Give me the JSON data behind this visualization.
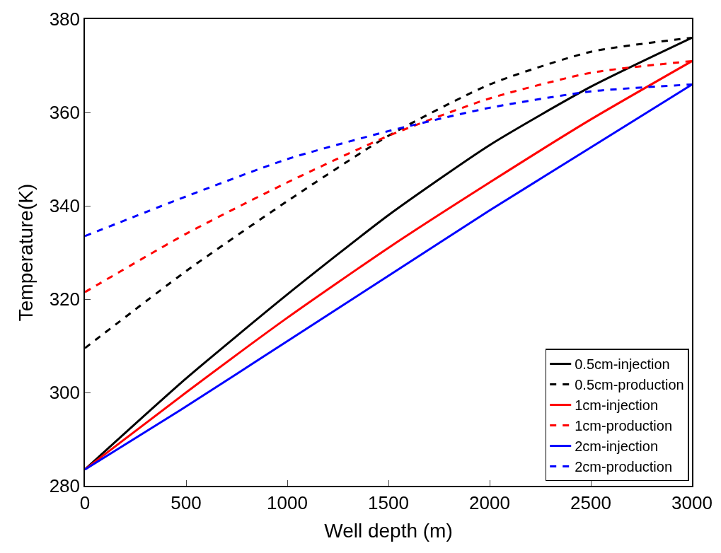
{
  "chart_data": {
    "type": "line",
    "xlabel": "Well depth (m)",
    "ylabel": "Temperature(K)",
    "x": [
      0,
      500,
      1000,
      1500,
      2000,
      2500,
      3000
    ],
    "xlim": [
      0,
      3000
    ],
    "xticks": [
      0,
      500,
      1000,
      1500,
      2000,
      2500,
      3000
    ],
    "ylim": [
      280,
      380
    ],
    "yticks": [
      280,
      300,
      320,
      340,
      360,
      380
    ],
    "legend": "bottom right",
    "series": [
      {
        "name": "0.5cm-injection",
        "color": "#000000",
        "line_style": "solid",
        "values": [
          283.5,
          303,
          321,
          338,
          353,
          365.5,
          376
        ]
      },
      {
        "name": "0.5cm-production",
        "color": "#000000",
        "line_style": "dashed",
        "values": [
          309.5,
          326,
          341,
          355,
          366,
          373,
          376
        ]
      },
      {
        "name": "1cm-injection",
        "color": "#ff0000",
        "line_style": "solid",
        "values": [
          283.5,
          300,
          316,
          331,
          345,
          358.5,
          371
        ]
      },
      {
        "name": "1cm-production",
        "color": "#ff0000",
        "line_style": "dashed",
        "values": [
          321.5,
          334,
          345,
          355,
          363,
          368.5,
          371
        ]
      },
      {
        "name": "2cm-injection",
        "color": "#0000ff",
        "line_style": "solid",
        "values": [
          283.5,
          297,
          311,
          325,
          339,
          352.5,
          366
        ]
      },
      {
        "name": "2cm-production",
        "color": "#0000ff",
        "line_style": "dashed",
        "values": [
          333.5,
          342,
          350,
          356,
          361,
          364.5,
          366
        ]
      }
    ]
  }
}
